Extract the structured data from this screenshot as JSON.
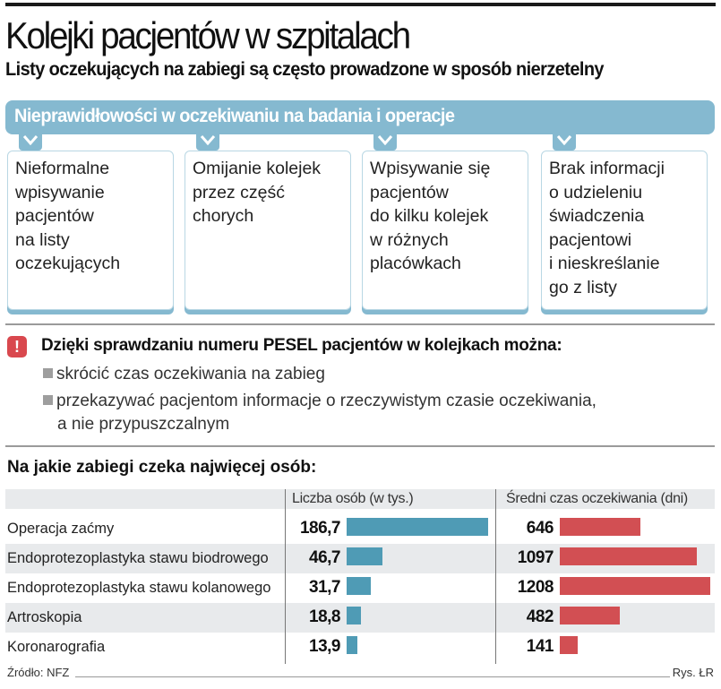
{
  "header": {
    "title": "Kolejki pacjentów w szpitalach",
    "subtitle": "Listy oczekujących na zabiegi są często prowadzone w sposób nierzetelny"
  },
  "irregularities": {
    "banner": "Nieprawidłowości w oczekiwaniu na badania i operacje",
    "cards": [
      {
        "lines": [
          "Nieformalne",
          "wpisywanie",
          "pacjentów",
          "na listy",
          "oczekujących"
        ]
      },
      {
        "lines": [
          "Omijanie kolejek",
          "przez część",
          "chorych"
        ]
      },
      {
        "lines": [
          "Wpisywanie się",
          "pacjentów",
          "do kilku kolejek",
          "w różnych",
          "placówkach"
        ]
      },
      {
        "lines": [
          "Brak informacji",
          "o udzieleniu",
          "świadczenia",
          "pacjentowi",
          "i nieskreślanie",
          "go z listy"
        ]
      }
    ]
  },
  "pesel": {
    "icon": "exclamation-icon",
    "heading": "Dzięki sprawdzaniu numeru PESEL pacjentów w kolejkach można:",
    "bullets": [
      {
        "line1": "skrócić czas oczekiwania na zabieg"
      },
      {
        "line1": "przekazywać pacjentom informacje o rzeczywistym czasie oczekiwania,",
        "line2": "a nie przypuszczalnym"
      }
    ]
  },
  "colors": {
    "accent_blue": "#85b9d0",
    "bar_blue": "#4f9bb5",
    "bar_red": "#d24f53",
    "alert_red": "#d9484e"
  },
  "chart_data": {
    "type": "table",
    "title": "Na jakie zabiegi czeka najwięcej osób:",
    "categories": [
      "Operacja zaćmy",
      "Endoprotezoplastyka stawu biodrowego",
      "Endoprotezoplastyka stawu kolanowego",
      "Artroskopia",
      "Koronarografia"
    ],
    "series": [
      {
        "name": "Liczba osób (w tys.)",
        "values": [
          186.7,
          46.7,
          31.7,
          18.8,
          13.9
        ],
        "labels": [
          "186,7",
          "46,7",
          "31,7",
          "18,8",
          "13,9"
        ],
        "color": "#4f9bb5",
        "max": 186.7
      },
      {
        "name": "Średni czas oczekiwania (dni)",
        "values": [
          646,
          1097,
          1208,
          482,
          141
        ],
        "labels": [
          "646",
          "1097",
          "1208",
          "482",
          "141"
        ],
        "color": "#d24f53",
        "max": 1208
      }
    ],
    "source": "Źródło: NFZ",
    "credit": "Rys. ŁR"
  }
}
